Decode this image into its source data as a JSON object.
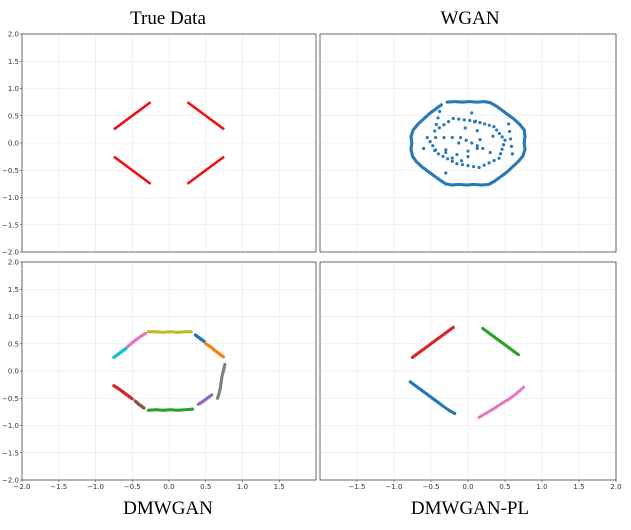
{
  "chart_data": [
    {
      "type": "scatter",
      "title": "True Data",
      "xlim": [
        -2.0,
        2.0
      ],
      "ylim": [
        -2.0,
        2.0
      ],
      "grid": true,
      "show_x_ticks": false,
      "show_y_ticks": true,
      "render": "lines",
      "series": [
        {
          "color": "#ee1111",
          "points": [
            [
              -0.75,
              0.25
            ],
            [
              -0.25,
              0.75
            ]
          ]
        },
        {
          "color": "#ee1111",
          "points": [
            [
              0.25,
              0.75
            ],
            [
              0.75,
              0.25
            ]
          ]
        },
        {
          "color": "#ee1111",
          "points": [
            [
              -0.75,
              -0.25
            ],
            [
              -0.25,
              -0.75
            ]
          ]
        },
        {
          "color": "#ee1111",
          "points": [
            [
              0.25,
              -0.75
            ],
            [
              0.75,
              -0.25
            ]
          ]
        }
      ]
    },
    {
      "type": "scatter",
      "title": "WGAN",
      "xlim": [
        -2.0,
        2.0
      ],
      "ylim": [
        -2.0,
        2.0
      ],
      "grid": true,
      "show_x_ticks": false,
      "show_y_ticks": false,
      "render": "points",
      "series": [
        {
          "color": "#2a78b4",
          "points": [
            [
              -0.28,
              0.75
            ],
            [
              -0.18,
              0.76
            ],
            [
              -0.08,
              0.75
            ],
            [
              0.02,
              0.76
            ],
            [
              0.12,
              0.75
            ],
            [
              0.22,
              0.76
            ],
            [
              0.3,
              0.74
            ],
            [
              0.38,
              0.68
            ],
            [
              0.46,
              0.6
            ],
            [
              0.54,
              0.52
            ],
            [
              0.62,
              0.44
            ],
            [
              0.7,
              0.34
            ],
            [
              0.76,
              0.24
            ],
            [
              0.77,
              0.12
            ],
            [
              0.76,
              0.0
            ],
            [
              0.77,
              -0.12
            ],
            [
              0.74,
              -0.24
            ],
            [
              0.68,
              -0.34
            ],
            [
              0.6,
              -0.44
            ],
            [
              0.52,
              -0.54
            ],
            [
              0.44,
              -0.62
            ],
            [
              0.36,
              -0.7
            ],
            [
              0.28,
              -0.76
            ],
            [
              0.18,
              -0.77
            ],
            [
              0.08,
              -0.76
            ],
            [
              -0.02,
              -0.77
            ],
            [
              -0.12,
              -0.76
            ],
            [
              -0.22,
              -0.77
            ],
            [
              -0.3,
              -0.75
            ],
            [
              -0.38,
              -0.68
            ],
            [
              -0.46,
              -0.6
            ],
            [
              -0.54,
              -0.52
            ],
            [
              -0.62,
              -0.44
            ],
            [
              -0.7,
              -0.34
            ],
            [
              -0.75,
              -0.24
            ],
            [
              -0.77,
              -0.12
            ],
            [
              -0.76,
              0.0
            ],
            [
              -0.77,
              0.12
            ],
            [
              -0.74,
              0.24
            ],
            [
              -0.68,
              0.34
            ],
            [
              -0.6,
              0.44
            ],
            [
              -0.52,
              0.54
            ],
            [
              -0.44,
              0.62
            ],
            [
              -0.36,
              0.7
            ],
            [
              -0.45,
              0.22
            ],
            [
              -0.2,
              0.45
            ],
            [
              0.1,
              0.4
            ],
            [
              0.35,
              0.3
            ],
            [
              0.5,
              0.05
            ],
            [
              0.42,
              -0.28
            ],
            [
              0.15,
              -0.45
            ],
            [
              -0.15,
              -0.38
            ],
            [
              -0.4,
              -0.2
            ],
            [
              -0.55,
              0.1
            ],
            [
              -0.1,
              0.1
            ],
            [
              0.2,
              -0.1
            ],
            [
              0.05,
              0.55
            ],
            [
              -0.3,
              -0.55
            ],
            [
              0.55,
              0.35
            ],
            [
              0.6,
              -0.2
            ],
            [
              -0.6,
              -0.1
            ],
            [
              0.0,
              -0.25
            ]
          ]
        }
      ]
    },
    {
      "type": "scatter",
      "title": "DMWGAN",
      "xlim": [
        -2.0,
        2.0
      ],
      "ylim": [
        -2.0,
        2.0
      ],
      "grid": true,
      "show_x_ticks": true,
      "show_y_ticks": true,
      "x_ticks": [
        -2.0,
        -1.5,
        -1.0,
        -0.5,
        0.0,
        0.5,
        1.0,
        1.5
      ],
      "render": "points",
      "series": [
        {
          "color": "#17becf",
          "points": [
            [
              -0.75,
              0.25
            ],
            [
              -0.7,
              0.3
            ],
            [
              -0.66,
              0.34
            ],
            [
              -0.62,
              0.38
            ],
            [
              -0.58,
              0.42
            ]
          ]
        },
        {
          "color": "#e377c2",
          "points": [
            [
              -0.56,
              0.45
            ],
            [
              -0.5,
              0.52
            ],
            [
              -0.44,
              0.58
            ],
            [
              -0.38,
              0.64
            ],
            [
              -0.32,
              0.69
            ]
          ]
        },
        {
          "color": "#bcbd22",
          "points": [
            [
              -0.28,
              0.72
            ],
            [
              -0.18,
              0.72
            ],
            [
              -0.08,
              0.71
            ],
            [
              0.02,
              0.72
            ],
            [
              0.12,
              0.71
            ],
            [
              0.22,
              0.72
            ],
            [
              0.3,
              0.72
            ]
          ]
        },
        {
          "color": "#1f77b4",
          "points": [
            [
              0.36,
              0.66
            ],
            [
              0.4,
              0.62
            ],
            [
              0.44,
              0.58
            ],
            [
              0.48,
              0.54
            ]
          ]
        },
        {
          "color": "#ff7f0e",
          "points": [
            [
              0.5,
              0.5
            ],
            [
              0.56,
              0.45
            ],
            [
              0.62,
              0.38
            ],
            [
              0.68,
              0.32
            ],
            [
              0.74,
              0.26
            ]
          ]
        },
        {
          "color": "#7f7f7f",
          "points": [
            [
              0.76,
              0.12
            ],
            [
              0.74,
              0.0
            ],
            [
              0.72,
              -0.1
            ],
            [
              0.71,
              -0.2
            ],
            [
              0.7,
              -0.3
            ],
            [
              0.68,
              -0.42
            ],
            [
              0.66,
              -0.5
            ]
          ]
        },
        {
          "color": "#9467bd",
          "points": [
            [
              0.58,
              -0.44
            ],
            [
              0.52,
              -0.5
            ],
            [
              0.46,
              -0.56
            ],
            [
              0.4,
              -0.61
            ]
          ]
        },
        {
          "color": "#2ca02c",
          "points": [
            [
              -0.28,
              -0.72
            ],
            [
              -0.18,
              -0.71
            ],
            [
              -0.08,
              -0.72
            ],
            [
              0.02,
              -0.71
            ],
            [
              0.12,
              -0.72
            ],
            [
              0.22,
              -0.71
            ],
            [
              0.32,
              -0.7
            ]
          ]
        },
        {
          "color": "#d62728",
          "points": [
            [
              -0.75,
              -0.27
            ],
            [
              -0.68,
              -0.33
            ],
            [
              -0.62,
              -0.39
            ],
            [
              -0.56,
              -0.45
            ],
            [
              -0.5,
              -0.51
            ]
          ]
        },
        {
          "color": "#8c564b",
          "points": [
            [
              -0.46,
              -0.55
            ],
            [
              -0.42,
              -0.6
            ],
            [
              -0.38,
              -0.64
            ],
            [
              -0.34,
              -0.68
            ]
          ]
        }
      ]
    },
    {
      "type": "scatter",
      "title": "DMWGAN-PL",
      "xlim": [
        -2.0,
        2.0
      ],
      "ylim": [
        -2.0,
        2.0
      ],
      "grid": true,
      "show_x_ticks": true,
      "show_y_ticks": false,
      "x_ticks": [
        -1.5,
        -1.0,
        -0.5,
        0.0,
        0.5,
        1.0,
        1.5,
        2.0
      ],
      "render": "points",
      "series": [
        {
          "color": "#d62728",
          "points": [
            [
              -0.75,
              0.25
            ],
            [
              -0.68,
              0.32
            ],
            [
              -0.6,
              0.4
            ],
            [
              -0.52,
              0.48
            ],
            [
              -0.44,
              0.56
            ],
            [
              -0.36,
              0.64
            ],
            [
              -0.28,
              0.72
            ],
            [
              -0.2,
              0.8
            ]
          ]
        },
        {
          "color": "#2ca02c",
          "points": [
            [
              0.2,
              0.78
            ],
            [
              0.28,
              0.7
            ],
            [
              0.36,
              0.62
            ],
            [
              0.44,
              0.54
            ],
            [
              0.52,
              0.46
            ],
            [
              0.6,
              0.38
            ],
            [
              0.68,
              0.3
            ]
          ]
        },
        {
          "color": "#1f77b4",
          "points": [
            [
              -0.78,
              -0.2
            ],
            [
              -0.7,
              -0.28
            ],
            [
              -0.62,
              -0.36
            ],
            [
              -0.54,
              -0.44
            ],
            [
              -0.46,
              -0.52
            ],
            [
              -0.38,
              -0.6
            ],
            [
              -0.28,
              -0.7
            ],
            [
              -0.18,
              -0.78
            ]
          ]
        },
        {
          "color": "#e377c2",
          "points": [
            [
              0.15,
              -0.85
            ],
            [
              0.25,
              -0.77
            ],
            [
              0.35,
              -0.69
            ],
            [
              0.45,
              -0.6
            ],
            [
              0.55,
              -0.52
            ],
            [
              0.65,
              -0.42
            ],
            [
              0.75,
              -0.3
            ]
          ]
        }
      ]
    }
  ]
}
